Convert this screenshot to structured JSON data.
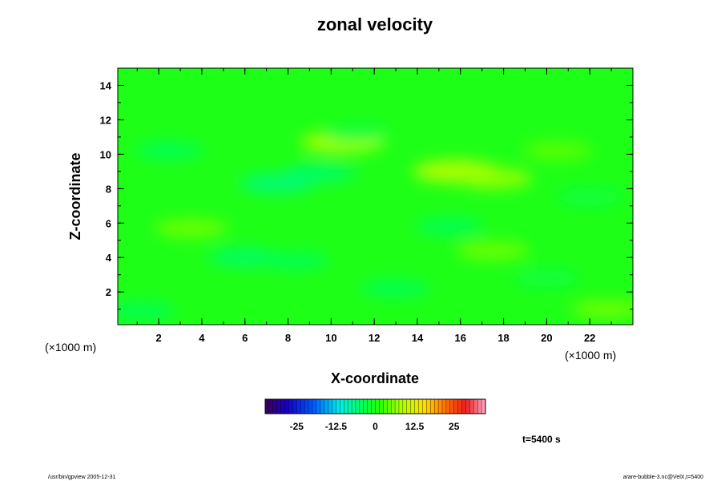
{
  "chart_data": {
    "type": "heatmap",
    "title": "zonal velocity",
    "xlabel": "X-coordinate",
    "ylabel": "Z-coordinate",
    "x_unit_note": "(×1000 m)",
    "y_unit_note": "(×1000 m)",
    "xlim": [
      0.1,
      24.0
    ],
    "ylim": [
      0.1,
      15.0
    ],
    "x_ticks": [
      2,
      4,
      6,
      8,
      10,
      12,
      14,
      16,
      18,
      20,
      22
    ],
    "y_ticks": [
      2,
      4,
      6,
      8,
      10,
      12,
      14
    ],
    "colorbar": {
      "range": [
        -35,
        35
      ],
      "ticks": [
        -25,
        -12.5,
        0,
        12.5,
        25
      ],
      "tick_labels": [
        "-25",
        "-12.5",
        "0",
        "12.5",
        "25"
      ],
      "colormap": "rainbow (purple-blue-cyan-green-yellow-red-pink)"
    },
    "value_range_shown": [
      -8,
      9
    ],
    "background_value": 0,
    "features": [
      {
        "x": 15.8,
        "z": 9.0,
        "value": 9,
        "note": "positive band"
      },
      {
        "x": 10.5,
        "z": 10.7,
        "value": 8
      },
      {
        "x": 17.5,
        "z": 8.6,
        "value": 7
      },
      {
        "x": 7.5,
        "z": 8.3,
        "value": -6,
        "note": "negative band"
      },
      {
        "x": 9.5,
        "z": 8.9,
        "value": -5
      },
      {
        "x": 3.5,
        "z": 5.7,
        "value": 5
      },
      {
        "x": 6.0,
        "z": 4.0,
        "value": -5
      },
      {
        "x": 8.3,
        "z": 3.8,
        "value": -4
      },
      {
        "x": 17.5,
        "z": 4.4,
        "value": 5
      },
      {
        "x": 15.5,
        "z": 5.8,
        "value": -4
      },
      {
        "x": 13.0,
        "z": 2.2,
        "value": -4
      },
      {
        "x": 2.5,
        "z": 10.2,
        "value": -4
      },
      {
        "x": 11.2,
        "z": 11.2,
        "value": -3
      },
      {
        "x": 20.5,
        "z": 10.2,
        "value": 4
      },
      {
        "x": 22.0,
        "z": 7.5,
        "value": -3
      },
      {
        "x": 22.8,
        "z": 1.0,
        "value": 5
      },
      {
        "x": 20.0,
        "z": 2.8,
        "value": -3
      },
      {
        "x": 1.2,
        "z": 0.9,
        "value": -4
      }
    ]
  },
  "annotations": {
    "time_label": "t=5400 s",
    "footer_left": "/usr/bin/gpview 2005-12-31",
    "footer_right": "arare-bubble-3.nc@VelX,t=5400"
  }
}
